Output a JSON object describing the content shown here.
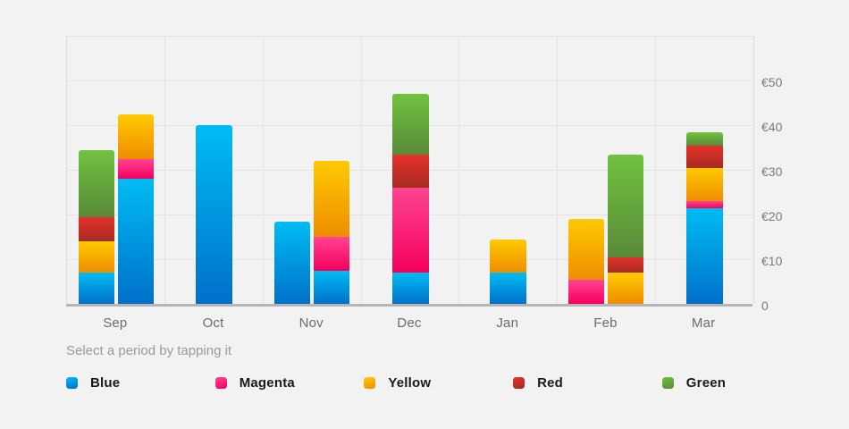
{
  "subtitle": "Select a period by tapping it",
  "legend": [
    {
      "label": "Blue",
      "series": "blue"
    },
    {
      "label": "Magenta",
      "series": "magenta"
    },
    {
      "label": "Yellow",
      "series": "yellow"
    },
    {
      "label": "Red",
      "series": "red"
    },
    {
      "label": "Green",
      "series": "green"
    }
  ],
  "colors": {
    "blue": {
      "top": "#00bcf3",
      "bottom": "#0070ca",
      "flat": "#00a2e6"
    },
    "magenta": {
      "top": "#ff4492",
      "bottom": "#f3005b",
      "flat": "#ff2d80"
    },
    "yellow": {
      "top": "#ffca01",
      "bottom": "#ee8d00",
      "flat": "#ffb902"
    },
    "red": {
      "top": "#e6312a",
      "bottom": "#a52b21",
      "flat": "#d32d26"
    },
    "green": {
      "top": "#70c23f",
      "bottom": "#5a8a39",
      "flat": "#69ae42"
    }
  },
  "chart_data": {
    "type": "bar",
    "stacked": true,
    "currency": "€",
    "title": "",
    "xlabel": "",
    "ylabel": "",
    "grid": true,
    "legend_position": "bottom",
    "categories": [
      "Sep",
      "Oct",
      "Nov",
      "Dec",
      "Jan",
      "Feb",
      "Mar"
    ],
    "ylim": [
      0,
      60
    ],
    "y_ticks": [
      {
        "value": 0,
        "label": "0"
      },
      {
        "value": 10,
        "label": "€10"
      },
      {
        "value": 20,
        "label": "€20"
      },
      {
        "value": 30,
        "label": "€30"
      },
      {
        "value": 40,
        "label": "€40"
      },
      {
        "value": 50,
        "label": "€50"
      }
    ],
    "bars_by_month": [
      {
        "month": "Sep",
        "bars": [
          {
            "segments": [
              {
                "series": "blue",
                "value": 7
              },
              {
                "series": "yellow",
                "value": 7
              },
              {
                "series": "red",
                "value": 5.5
              },
              {
                "series": "green",
                "value": 15
              }
            ]
          },
          {
            "segments": [
              {
                "series": "blue",
                "value": 28
              },
              {
                "series": "magenta",
                "value": 4.5
              },
              {
                "series": "yellow",
                "value": 10
              }
            ]
          }
        ]
      },
      {
        "month": "Oct",
        "bars": [
          {
            "segments": [
              {
                "series": "blue",
                "value": 40
              }
            ]
          }
        ]
      },
      {
        "month": "Nov",
        "bars": [
          {
            "segments": [
              {
                "series": "blue",
                "value": 18.5
              }
            ]
          },
          {
            "segments": [
              {
                "series": "blue",
                "value": 7.5
              },
              {
                "series": "magenta",
                "value": 7.5
              },
              {
                "series": "yellow",
                "value": 17
              }
            ]
          }
        ]
      },
      {
        "month": "Dec",
        "bars": [
          {
            "segments": [
              {
                "series": "blue",
                "value": 7
              },
              {
                "series": "magenta",
                "value": 19
              },
              {
                "series": "red",
                "value": 7.5
              },
              {
                "series": "green",
                "value": 13.5
              }
            ]
          }
        ]
      },
      {
        "month": "Jan",
        "bars": [
          {
            "segments": [
              {
                "series": "blue",
                "value": 7
              },
              {
                "series": "yellow",
                "value": 7.5
              }
            ]
          }
        ]
      },
      {
        "month": "Feb",
        "bars": [
          {
            "segments": [
              {
                "series": "magenta",
                "value": 5.5
              },
              {
                "series": "yellow",
                "value": 13.5
              }
            ]
          },
          {
            "segments": [
              {
                "series": "yellow",
                "value": 7
              },
              {
                "series": "red",
                "value": 3.5
              },
              {
                "series": "green",
                "value": 23
              }
            ]
          }
        ]
      },
      {
        "month": "Mar",
        "bars": [
          {
            "segments": [
              {
                "series": "blue",
                "value": 21.5
              },
              {
                "series": "magenta",
                "value": 1.5
              },
              {
                "series": "yellow",
                "value": 7.5
              },
              {
                "series": "red",
                "value": 5
              },
              {
                "series": "green",
                "value": 3
              }
            ]
          }
        ]
      }
    ]
  }
}
